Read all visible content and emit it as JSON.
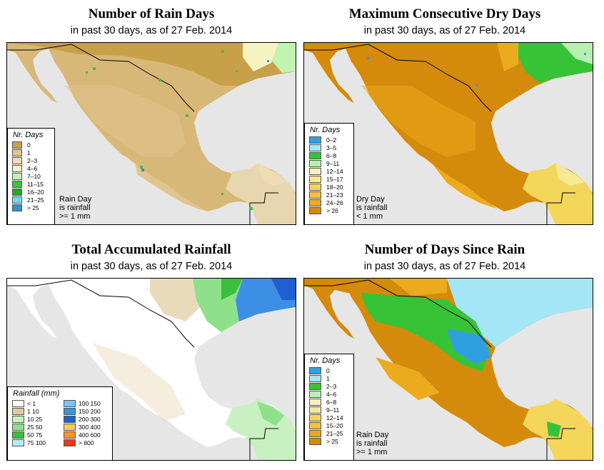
{
  "panels": [
    {
      "title": "Number of Rain Days",
      "subtitle": "in past 30 days, as of  27 Feb. 2014",
      "legend_title": "Nr. Days",
      "legend": [
        {
          "label": "0",
          "color": "#c9a04a"
        },
        {
          "label": "1",
          "color": "#e1c492"
        },
        {
          "label": "2–3",
          "color": "#f0dcb4"
        },
        {
          "label": "4–6",
          "color": "#f6f3c2"
        },
        {
          "label": "7–10",
          "color": "#c2f3b0"
        },
        {
          "label": "11–15",
          "color": "#3ec53e"
        },
        {
          "label": "16–20",
          "color": "#2aa52a"
        },
        {
          "label": "21–25",
          "color": "#6fd8f5"
        },
        {
          "label": "> 25",
          "color": "#3a8ec8"
        }
      ],
      "note": [
        "Rain Day",
        "is rainfall",
        ">= 1 mm"
      ]
    },
    {
      "title": "Maximum Consecutive Dry Days",
      "subtitle": "in past 30 days, as of  27 Feb. 2014",
      "legend_title": "Nr. Days",
      "legend": [
        {
          "label": "0–2",
          "color": "#2f9fe0"
        },
        {
          "label": "3–5",
          "color": "#a4e6f5"
        },
        {
          "label": "6–8",
          "color": "#37c337"
        },
        {
          "label": "9–11",
          "color": "#b8f0b0"
        },
        {
          "label": "12–14",
          "color": "#f7f1c0"
        },
        {
          "label": "15–17",
          "color": "#f6ea96"
        },
        {
          "label": "18–20",
          "color": "#f4d65a"
        },
        {
          "label": "21–23",
          "color": "#f2c23a"
        },
        {
          "label": "24–26",
          "color": "#ecaa1e"
        },
        {
          "label": "> 26",
          "color": "#d48a0a"
        }
      ],
      "note": [
        "Dry Day",
        "is rainfall",
        "< 1 mm"
      ]
    },
    {
      "title": "Total Accumulated Rainfall",
      "subtitle": "in past 30 days, as of  27 Feb. 2014",
      "legend_title": "Rainfall (mm)",
      "legend": [
        {
          "label": "< 1",
          "color": "#ffffff"
        },
        {
          "label": "1    10",
          "color": "#e1cba0"
        },
        {
          "label": "10    25",
          "color": "#c8f0c0"
        },
        {
          "label": "25    50",
          "color": "#8ee08a"
        },
        {
          "label": "50    75",
          "color": "#3cbf3c"
        },
        {
          "label": "75  100",
          "color": "#b2ecf8"
        },
        {
          "label": "100  150",
          "color": "#7dc3f2"
        },
        {
          "label": "150  200",
          "color": "#3d8fe6"
        },
        {
          "label": "200  300",
          "color": "#1f5fd0"
        },
        {
          "label": "300  400",
          "color": "#f6ce5a"
        },
        {
          "label": "400  600",
          "color": "#f39a1e"
        },
        {
          "label": "> 600",
          "color": "#e83a14"
        }
      ]
    },
    {
      "title": "Number of Days Since Rain",
      "subtitle": "in past 30 days, as of  27 Feb. 2014",
      "legend_title": "Nr. Days",
      "legend": [
        {
          "label": "0",
          "color": "#2f9fe0"
        },
        {
          "label": "1",
          "color": "#a4e6f5"
        },
        {
          "label": "2–3",
          "color": "#37c337"
        },
        {
          "label": "4–6",
          "color": "#b8f0b0"
        },
        {
          "label": "6–8",
          "color": "#f7f1c0"
        },
        {
          "label": "9–11",
          "color": "#f6ea96"
        },
        {
          "label": "12–14",
          "color": "#f4d65a"
        },
        {
          "label": "15–20",
          "color": "#f2c23a"
        },
        {
          "label": "21–25",
          "color": "#ecaa1e"
        },
        {
          "label": "> 25",
          "color": "#d48a0a"
        }
      ],
      "note": [
        "Rain Day",
        "is rainfall",
        ">= 1 mm"
      ]
    }
  ]
}
